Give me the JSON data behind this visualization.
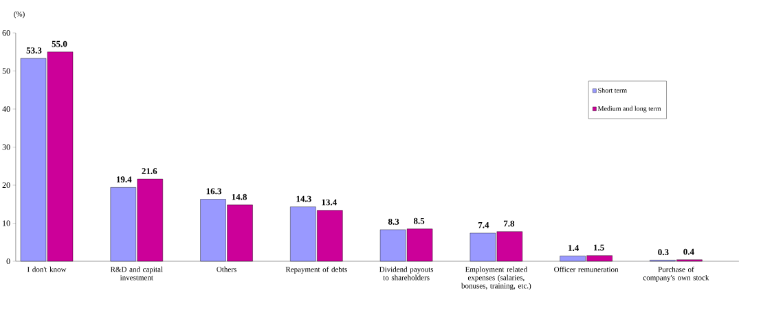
{
  "chart_data": {
    "type": "bar",
    "ylabel": "(%)",
    "categories": [
      "I don't know",
      "R&D and capital investment",
      "Others",
      "Repayment of debts",
      "Dividend payouts to shareholders",
      "Employment related expenses (salaries, bonuses, training, etc.)",
      "Officer remuneration",
      "Purchase of company's own stock"
    ],
    "series": [
      {
        "name": "Short term",
        "color": "#9999ff",
        "values": [
          53.3,
          19.4,
          16.3,
          14.3,
          8.3,
          7.4,
          1.4,
          0.3
        ],
        "value_labels": [
          "53.3",
          "19.4",
          "16.3",
          "14.3",
          "8.3",
          "7.4",
          "1.4",
          "0.3"
        ]
      },
      {
        "name": "Medium and long term",
        "color": "#cc0099",
        "values": [
          55.0,
          21.6,
          14.8,
          13.4,
          8.5,
          7.8,
          1.5,
          0.4
        ],
        "value_labels": [
          "55.0",
          "21.6",
          "14.8",
          "13.4",
          "8.5",
          "7.8",
          "1.5",
          "0.4"
        ]
      }
    ],
    "ylim": [
      0,
      60
    ],
    "yticks": [
      0,
      10,
      20,
      30,
      40,
      50,
      60
    ],
    "legend": "top right",
    "grid": false
  }
}
